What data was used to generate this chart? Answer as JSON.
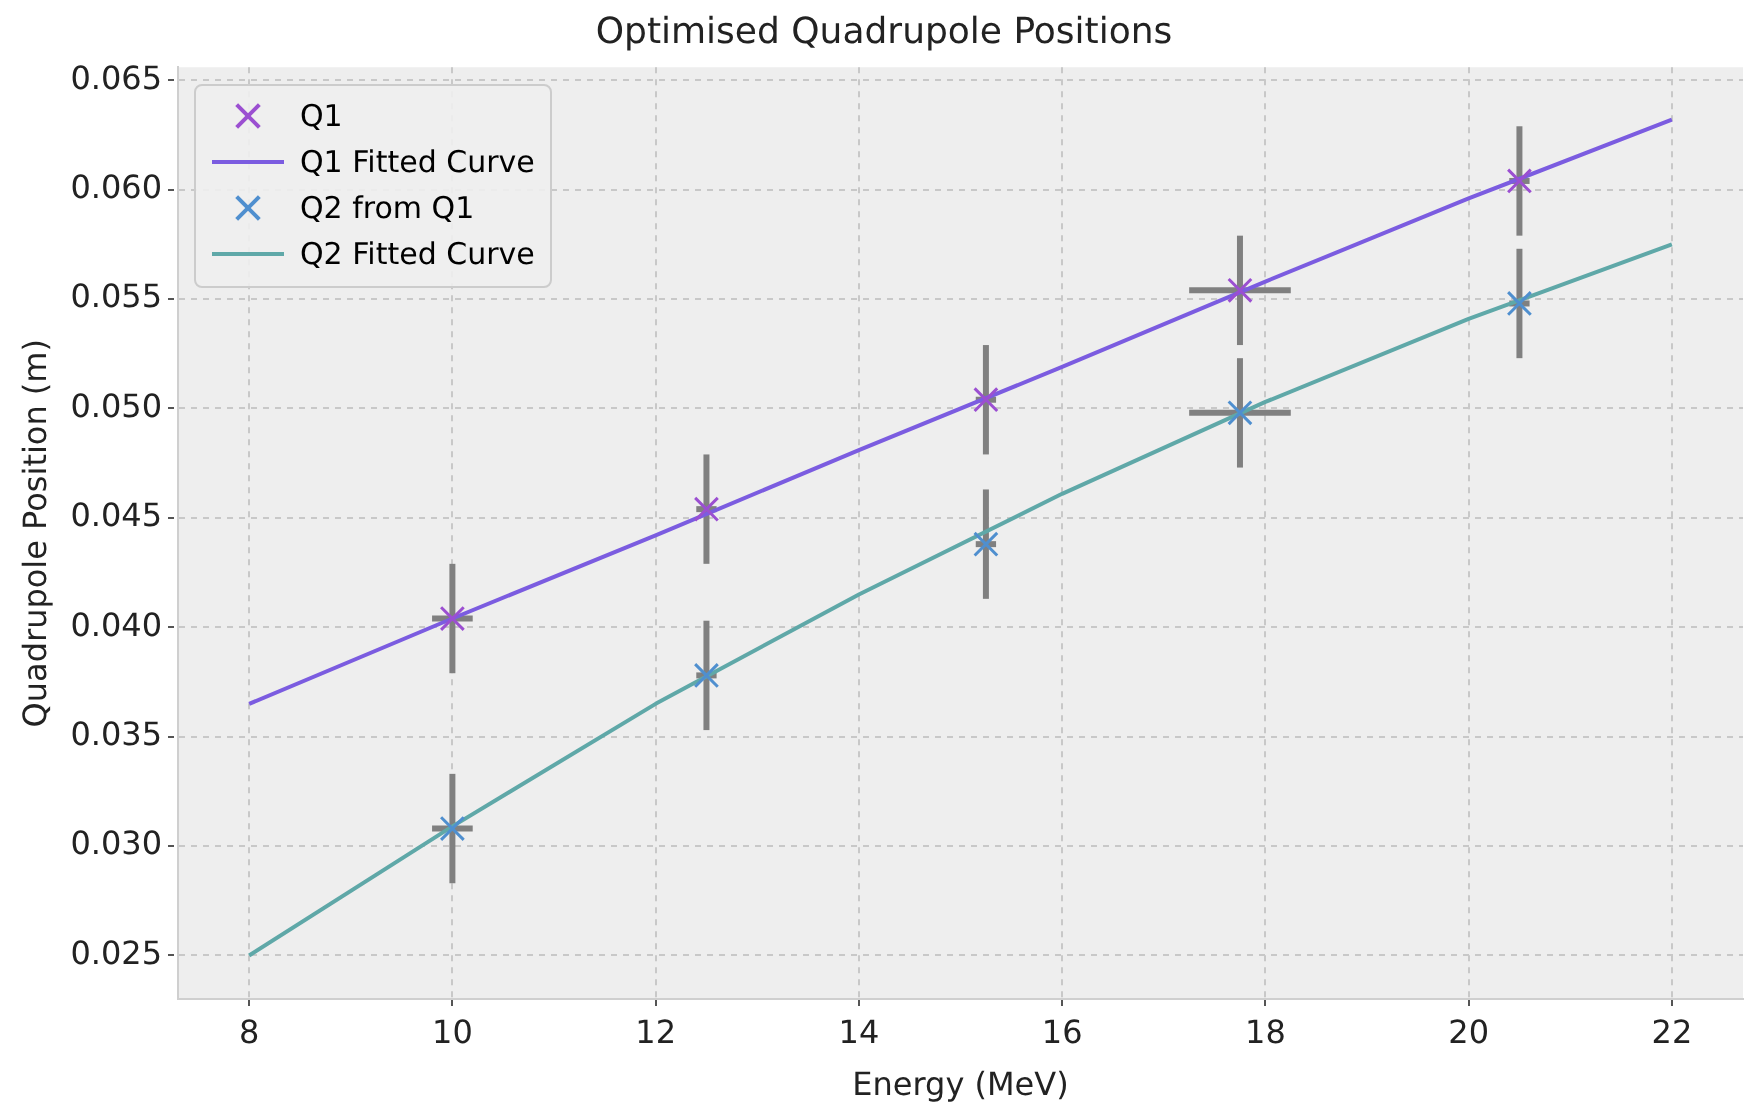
{
  "chart_data": {
    "type": "scatter",
    "title": "Optimised Quadrupole Positions",
    "xlabel": "Energy (MeV)",
    "ylabel": "Quadrupole Position (m)",
    "xlim": [
      7.3,
      22.7
    ],
    "xticks": [
      8,
      10,
      12,
      14,
      16,
      18,
      20,
      22
    ],
    "ylim": [
      0.023,
      0.0656
    ],
    "yticks": [
      {
        "value": 0.025,
        "label": "0.025"
      },
      {
        "value": 0.03,
        "label": "0.030"
      },
      {
        "value": 0.035,
        "label": "0.035"
      },
      {
        "value": 0.04,
        "label": "0.040"
      },
      {
        "value": 0.045,
        "label": "0.045"
      },
      {
        "value": 0.05,
        "label": "0.050"
      },
      {
        "value": 0.055,
        "label": "0.055"
      },
      {
        "value": 0.06,
        "label": "0.060"
      },
      {
        "value": 0.065,
        "label": "0.065"
      }
    ],
    "grid": true,
    "legend": "top left",
    "series": [
      {
        "name": "Q1",
        "marker": "cross",
        "color": "#9b4fd1",
        "x": [
          10,
          12.5,
          15.25,
          17.75,
          20.5
        ],
        "values": [
          0.0404,
          0.0454,
          0.0504,
          0.0554,
          0.0604
        ],
        "errors": [
          0.0025,
          0.0025,
          0.0025,
          0.0025,
          0.0025
        ],
        "xerrors": [
          0.2,
          0.1,
          0.1,
          0.5,
          0.1
        ]
      },
      {
        "name": "Q1 Fitted Curve",
        "type": "line",
        "color": "#7b5ce0",
        "x": [
          8,
          10,
          12,
          14,
          16,
          18,
          20,
          22
        ],
        "values": [
          0.0365,
          0.0404,
          0.0442,
          0.0481,
          0.0519,
          0.0558,
          0.0596,
          0.0632
        ]
      },
      {
        "name": "Q2 from Q1",
        "marker": "cross",
        "color": "#4f8fcf",
        "x": [
          10,
          12.5,
          15.25,
          17.75,
          20.5
        ],
        "values": [
          0.0308,
          0.0378,
          0.0438,
          0.0498,
          0.0548
        ],
        "errors": [
          0.0025,
          0.0025,
          0.0025,
          0.0025,
          0.0025
        ],
        "xerrors": [
          0.2,
          0.1,
          0.1,
          0.5,
          0.1
        ]
      },
      {
        "name": "Q2 Fitted Curve",
        "type": "line",
        "color": "#5fa8a8",
        "x": [
          8,
          10,
          12,
          14,
          16,
          18,
          20,
          22
        ],
        "values": [
          0.025,
          0.0309,
          0.0365,
          0.0415,
          0.0461,
          0.0503,
          0.0541,
          0.0575
        ]
      }
    ]
  }
}
